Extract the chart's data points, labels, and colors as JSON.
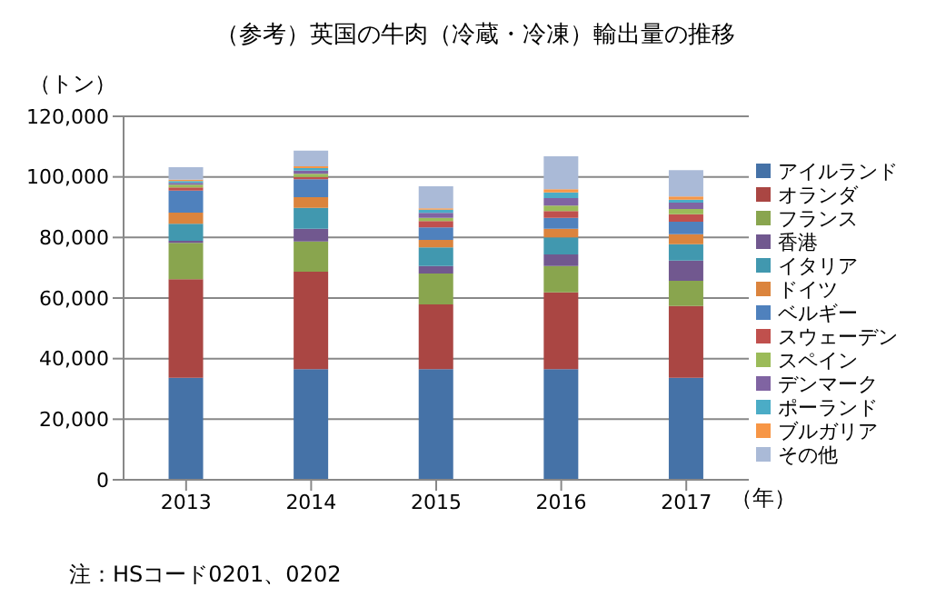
{
  "chart_data": {
    "type": "bar",
    "title": "（参考）英国の牛肉（冷蔵・冷凍）輸出量の推移",
    "ylabel": "（トン）",
    "xlabel": "（年）",
    "categories": [
      "2013",
      "2014",
      "2015",
      "2016",
      "2017"
    ],
    "stacked": true,
    "ylim": [
      0,
      120000
    ],
    "yticks": [
      {
        "value": 0,
        "label": "0"
      },
      {
        "value": 20000,
        "label": "20,000"
      },
      {
        "value": 40000,
        "label": "40,000"
      },
      {
        "value": 60000,
        "label": "60,000"
      },
      {
        "value": 80000,
        "label": "80,000"
      },
      {
        "value": 100000,
        "label": "100,000"
      },
      {
        "value": 120000,
        "label": "120,000"
      }
    ],
    "grid": "y",
    "legend": "right",
    "annotations": [
      "注：HSコード0201、0202"
    ],
    "series": [
      {
        "name": "アイルランド",
        "color": "#4572a7",
        "values": [
          33700,
          36500,
          36500,
          36500,
          33700
        ]
      },
      {
        "name": "オランダ",
        "color": "#aa4643",
        "values": [
          32500,
          32200,
          21400,
          25400,
          23700
        ]
      },
      {
        "name": "フランス",
        "color": "#89a54e",
        "values": [
          12000,
          10000,
          10200,
          8700,
          8300
        ]
      },
      {
        "name": "香港",
        "color": "#71588f",
        "values": [
          700,
          4200,
          2500,
          3800,
          6700
        ]
      },
      {
        "name": "イタリア",
        "color": "#4198af",
        "values": [
          5600,
          6900,
          6100,
          5600,
          5400
        ]
      },
      {
        "name": "ドイツ",
        "color": "#db843d",
        "values": [
          3700,
          3500,
          2500,
          2900,
          3300
        ]
      },
      {
        "name": "ベルギー",
        "color": "#4f81bd",
        "values": [
          7300,
          5900,
          4100,
          3600,
          4100
        ]
      },
      {
        "name": "スウェーデン",
        "color": "#c0504d",
        "values": [
          1000,
          800,
          2100,
          2200,
          2500
        ]
      },
      {
        "name": "スペイン",
        "color": "#9bbb59",
        "values": [
          900,
          1000,
          1100,
          1800,
          1700
        ]
      },
      {
        "name": "デンマーク",
        "color": "#8064a2",
        "values": [
          600,
          1100,
          1600,
          2500,
          2100
        ]
      },
      {
        "name": "ポーランド",
        "color": "#4bacc6",
        "values": [
          600,
          800,
          1100,
          1900,
          1000
        ]
      },
      {
        "name": "ブルガリア",
        "color": "#f79646",
        "values": [
          500,
          600,
          400,
          1000,
          1000
        ]
      },
      {
        "name": "その他",
        "color": "#aabad7",
        "values": [
          4100,
          5200,
          7300,
          10900,
          8700
        ]
      }
    ]
  }
}
